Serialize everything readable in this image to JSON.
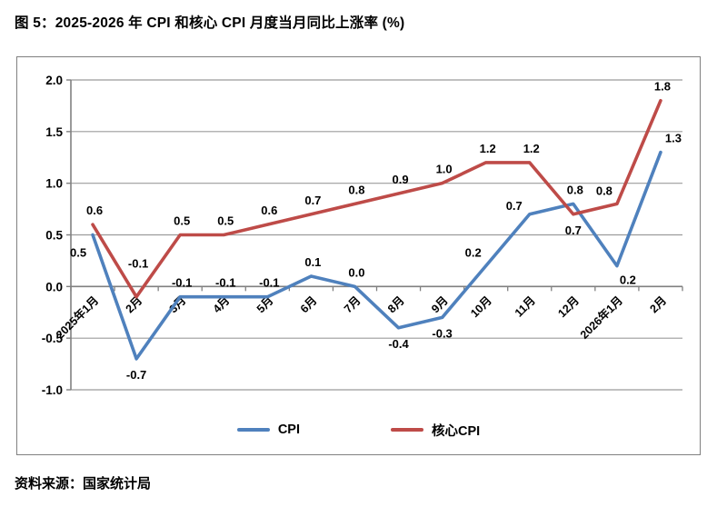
{
  "page": {
    "title": "图 5：2025-2026 年 CPI 和核心 CPI 月度当月同比上涨率 (%)",
    "source": "资料来源：国家统计局"
  },
  "legend": {
    "items": [
      {
        "label": "CPI",
        "color": "#4F81BD"
      },
      {
        "label": "核心CPI",
        "color": "#BE4B48"
      }
    ]
  },
  "colors": {
    "cpi_line": "#4F81BD",
    "core_cpi_line": "#BE4B48",
    "gridline": "#9b9b9b",
    "axis": "#808080",
    "label_text": "#000000"
  },
  "chart_data": {
    "type": "line",
    "title": "2025-2026 年 CPI 和核心 CPI 月度当月同比上涨率 (%)",
    "categories": [
      "2025年1月",
      "2月",
      "3月",
      "4月",
      "5月",
      "6月",
      "7月",
      "8月",
      "9月",
      "10月",
      "11月",
      "12月",
      "2026年1月",
      "2月"
    ],
    "series": [
      {
        "name": "CPI",
        "color": "#4F81BD",
        "values": [
          0.5,
          -0.7,
          -0.1,
          -0.1,
          -0.1,
          0.1,
          0.0,
          -0.4,
          -0.3,
          0.2,
          0.7,
          0.8,
          0.2,
          1.3
        ],
        "label_pos": [
          "below-left",
          "below",
          "above",
          "above",
          "above",
          "above",
          "above",
          "below",
          "below",
          "above-left",
          "left-above",
          "above",
          "below-right",
          "above-right"
        ]
      },
      {
        "name": "核心CPI",
        "color": "#BE4B48",
        "values": [
          0.6,
          -0.1,
          0.5,
          0.5,
          0.6,
          0.7,
          0.8,
          0.9,
          1.0,
          1.2,
          1.2,
          0.7,
          0.8,
          1.8
        ],
        "label_pos": [
          "above",
          "above-far",
          "above",
          "above",
          "above",
          "above",
          "above",
          "above",
          "above",
          "above",
          "above",
          "below",
          "above-left",
          "above"
        ]
      }
    ],
    "xlabel": "",
    "ylabel": "",
    "ylim": [
      -1.0,
      2.0
    ],
    "yticks": [
      2.0,
      1.5,
      1.0,
      0.5,
      0.0,
      -0.5,
      -1.0
    ],
    "grid": true,
    "data_labels": true,
    "legend_position": "bottom"
  }
}
